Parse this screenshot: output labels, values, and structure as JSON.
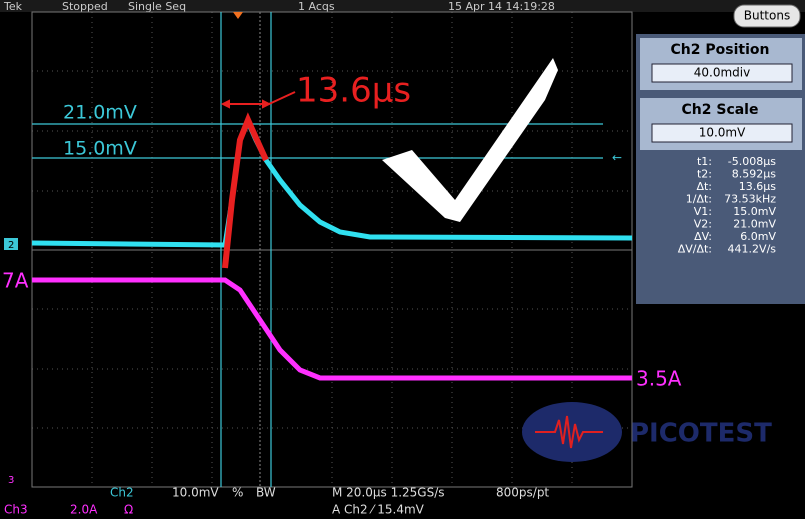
{
  "header": {
    "brand": "Tek",
    "status": "Stopped",
    "mode": "Single Seq",
    "acquisitions": "1 Acqs",
    "datetime": "15 Apr 14 14:19:28",
    "button": "Buttons"
  },
  "panel": {
    "position_label": "Ch2 Position",
    "position_value": "40.0mdiv",
    "scale_label": "Ch2 Scale",
    "scale_value": "10.0mV"
  },
  "readouts": [
    {
      "label": "t1:",
      "value": "-5.008µs"
    },
    {
      "label": "t2:",
      "value": "8.592µs"
    },
    {
      "label": "Δt:",
      "value": "13.6µs"
    },
    {
      "label": "1/Δt:",
      "value": "73.53kHz"
    },
    {
      "label": "V1:",
      "value": "15.0mV"
    },
    {
      "label": "V2:",
      "value": "21.0mV"
    },
    {
      "label": "ΔV:",
      "value": "6.0mV"
    },
    {
      "label": "ΔV/Δt:",
      "value": "441.2V/s"
    }
  ],
  "annotations": {
    "delta_t": "13.6µs",
    "upper_level": "21.0mV",
    "lower_level": "15.0mV",
    "start_current": "7A",
    "end_current": "3.5A",
    "logo": "PICOTEST"
  },
  "markers": {
    "ch2": "2",
    "ch3": "3"
  },
  "footer": {
    "ch2": "Ch2",
    "ch2_scale": "10.0mV",
    "ch2_coupling": "%",
    "bandwidth": "BW",
    "ch3": "Ch3",
    "ch3_scale": "2.0A",
    "ch3_termination": "Ω",
    "timebase": "M 20.0µs 1.25GS/s",
    "resolution": "800ps/pt",
    "trigger": "A  Ch2  ⁄  15.4mV"
  }
}
